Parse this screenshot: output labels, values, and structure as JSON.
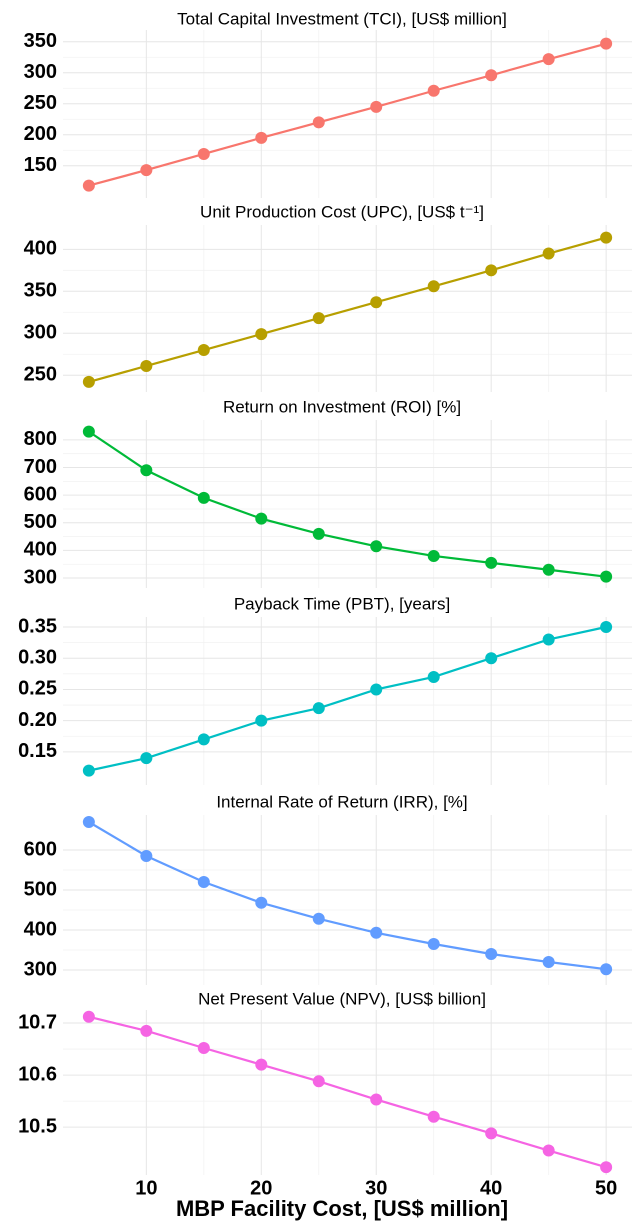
{
  "chart_data": [
    {
      "type": "line",
      "title": "Total Capital Investment (TCI), [US$ million]",
      "x": [
        5,
        10,
        15,
        20,
        25,
        30,
        35,
        40,
        45,
        50
      ],
      "values": [
        118,
        143,
        169,
        195,
        220,
        245,
        271,
        296,
        322,
        347
      ],
      "color": "#F8766D",
      "xlim": [
        2.75,
        52.25
      ],
      "xticks": [
        10,
        20,
        30,
        40,
        50
      ],
      "ylim": [
        98,
        369
      ],
      "yticks": [
        150,
        200,
        250,
        300,
        350
      ]
    },
    {
      "type": "line",
      "title": "Unit Production Cost (UPC), [US$ t⁻¹]",
      "x": [
        5,
        10,
        15,
        20,
        25,
        30,
        35,
        40,
        45,
        50
      ],
      "values": [
        242,
        261,
        280,
        299,
        318,
        337,
        356,
        375,
        395,
        414
      ],
      "color": "#B79F00",
      "xlim": [
        2.75,
        52.25
      ],
      "xticks": [
        10,
        20,
        30,
        40,
        50
      ],
      "ylim": [
        230,
        429
      ],
      "yticks": [
        250,
        300,
        350,
        400
      ]
    },
    {
      "type": "line",
      "title": "Return on Investment (ROI) [%]",
      "x": [
        5,
        10,
        15,
        20,
        25,
        30,
        35,
        40,
        45,
        50
      ],
      "values": [
        830,
        690,
        590,
        515,
        460,
        415,
        380,
        355,
        330,
        305
      ],
      "color": "#00BA38",
      "xlim": [
        2.75,
        52.25
      ],
      "xticks": [
        10,
        20,
        30,
        40,
        50
      ],
      "ylim": [
        264,
        872
      ],
      "yticks": [
        300,
        400,
        500,
        600,
        700,
        800
      ]
    },
    {
      "type": "line",
      "title": "Payback Time (PBT), [years]",
      "x": [
        5,
        10,
        15,
        20,
        25,
        30,
        35,
        40,
        45,
        50
      ],
      "values": [
        0.12,
        0.14,
        0.17,
        0.2,
        0.22,
        0.25,
        0.27,
        0.3,
        0.33,
        0.35
      ],
      "color": "#00BFC4",
      "xlim": [
        2.75,
        52.25
      ],
      "xticks": [
        10,
        20,
        30,
        40,
        50
      ],
      "ylim": [
        0.097,
        0.366
      ],
      "yticks": [
        0.15,
        {
          "value": 0.2,
          "label": "0.20"
        },
        0.25,
        {
          "value": 0.3,
          "label": "0.30"
        },
        0.35
      ]
    },
    {
      "type": "line",
      "title": "Internal Rate of Return (IRR), [%]",
      "x": [
        5,
        10,
        15,
        20,
        25,
        30,
        35,
        40,
        45,
        50
      ],
      "values": [
        670,
        585,
        520,
        468,
        428,
        393,
        365,
        340,
        320,
        302
      ],
      "color": "#619CFF",
      "xlim": [
        2.75,
        52.25
      ],
      "xticks": [
        10,
        20,
        30,
        40,
        50
      ],
      "ylim": [
        262.5,
        687.5
      ],
      "yticks": [
        300,
        400,
        500,
        600
      ]
    },
    {
      "type": "line",
      "title": "Net Present Value (NPV), [US$ billion]",
      "x": [
        5,
        10,
        15,
        20,
        25,
        30,
        35,
        40,
        45,
        50
      ],
      "values": [
        10.712,
        10.685,
        10.652,
        10.62,
        10.588,
        10.553,
        10.52,
        10.488,
        10.455,
        10.423
      ],
      "color": "#F564E3",
      "xlim": [
        2.75,
        52.25
      ],
      "xticks": [
        10,
        20,
        30,
        40,
        50
      ],
      "ylim": [
        10.408,
        10.725
      ],
      "yticks": [
        10.5,
        10.6,
        10.7
      ],
      "xlabel": "MBP Facility Cost, [US$ million]"
    }
  ]
}
